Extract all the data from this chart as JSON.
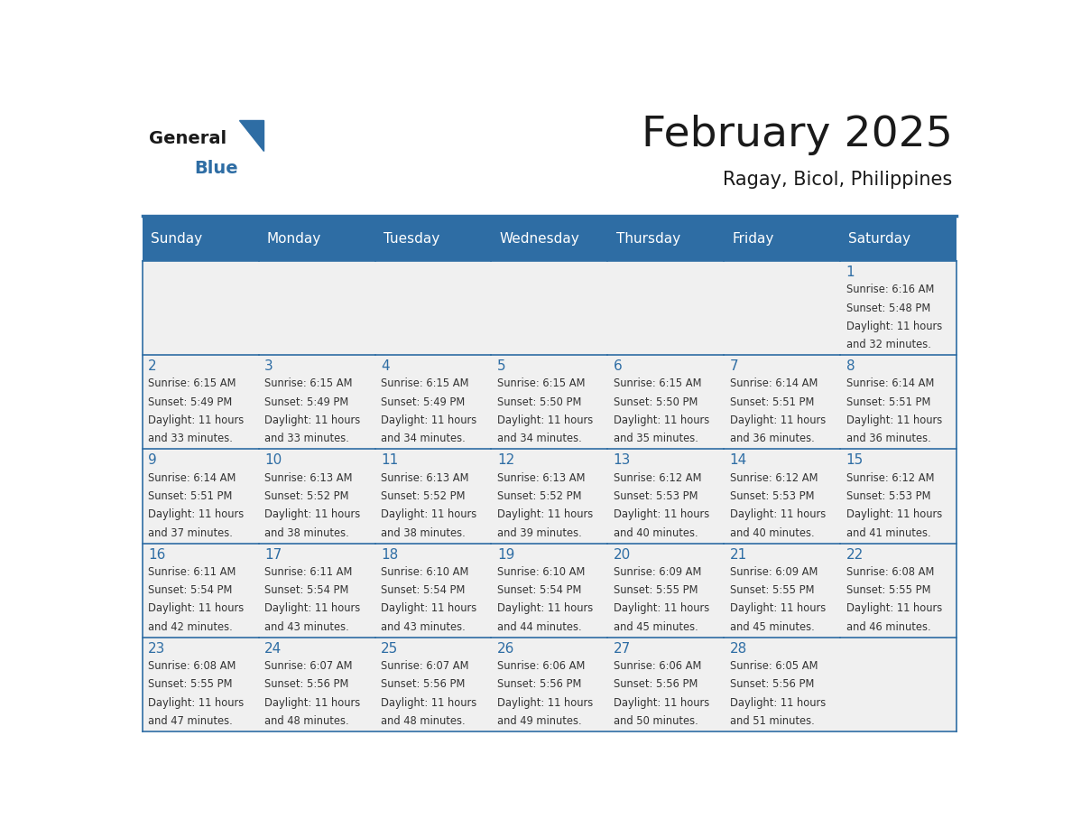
{
  "title": "February 2025",
  "subtitle": "Ragay, Bicol, Philippines",
  "header_bg": "#2E6DA4",
  "header_text_color": "#FFFFFF",
  "cell_bg": "#F0F0F0",
  "cell_border_color": "#2E6DA4",
  "day_number_color": "#2E6DA4",
  "text_color": "#333333",
  "days_of_week": [
    "Sunday",
    "Monday",
    "Tuesday",
    "Wednesday",
    "Thursday",
    "Friday",
    "Saturday"
  ],
  "calendar_data": [
    [
      null,
      null,
      null,
      null,
      null,
      null,
      1
    ],
    [
      2,
      3,
      4,
      5,
      6,
      7,
      8
    ],
    [
      9,
      10,
      11,
      12,
      13,
      14,
      15
    ],
    [
      16,
      17,
      18,
      19,
      20,
      21,
      22
    ],
    [
      23,
      24,
      25,
      26,
      27,
      28,
      null
    ]
  ],
  "sunrise_data": {
    "1": "6:16 AM",
    "2": "6:15 AM",
    "3": "6:15 AM",
    "4": "6:15 AM",
    "5": "6:15 AM",
    "6": "6:15 AM",
    "7": "6:14 AM",
    "8": "6:14 AM",
    "9": "6:14 AM",
    "10": "6:13 AM",
    "11": "6:13 AM",
    "12": "6:13 AM",
    "13": "6:12 AM",
    "14": "6:12 AM",
    "15": "6:12 AM",
    "16": "6:11 AM",
    "17": "6:11 AM",
    "18": "6:10 AM",
    "19": "6:10 AM",
    "20": "6:09 AM",
    "21": "6:09 AM",
    "22": "6:08 AM",
    "23": "6:08 AM",
    "24": "6:07 AM",
    "25": "6:07 AM",
    "26": "6:06 AM",
    "27": "6:06 AM",
    "28": "6:05 AM"
  },
  "sunset_data": {
    "1": "5:48 PM",
    "2": "5:49 PM",
    "3": "5:49 PM",
    "4": "5:49 PM",
    "5": "5:50 PM",
    "6": "5:50 PM",
    "7": "5:51 PM",
    "8": "5:51 PM",
    "9": "5:51 PM",
    "10": "5:52 PM",
    "11": "5:52 PM",
    "12": "5:52 PM",
    "13": "5:53 PM",
    "14": "5:53 PM",
    "15": "5:53 PM",
    "16": "5:54 PM",
    "17": "5:54 PM",
    "18": "5:54 PM",
    "19": "5:54 PM",
    "20": "5:55 PM",
    "21": "5:55 PM",
    "22": "5:55 PM",
    "23": "5:55 PM",
    "24": "5:56 PM",
    "25": "5:56 PM",
    "26": "5:56 PM",
    "27": "5:56 PM",
    "28": "5:56 PM"
  },
  "daylight_data": {
    "1": "11 hours and 32 minutes.",
    "2": "11 hours and 33 minutes.",
    "3": "11 hours and 33 minutes.",
    "4": "11 hours and 34 minutes.",
    "5": "11 hours and 34 minutes.",
    "6": "11 hours and 35 minutes.",
    "7": "11 hours and 36 minutes.",
    "8": "11 hours and 36 minutes.",
    "9": "11 hours and 37 minutes.",
    "10": "11 hours and 38 minutes.",
    "11": "11 hours and 38 minutes.",
    "12": "11 hours and 39 minutes.",
    "13": "11 hours and 40 minutes.",
    "14": "11 hours and 40 minutes.",
    "15": "11 hours and 41 minutes.",
    "16": "11 hours and 42 minutes.",
    "17": "11 hours and 43 minutes.",
    "18": "11 hours and 43 minutes.",
    "19": "11 hours and 44 minutes.",
    "20": "11 hours and 45 minutes.",
    "21": "11 hours and 45 minutes.",
    "22": "11 hours and 46 minutes.",
    "23": "11 hours and 47 minutes.",
    "24": "11 hours and 48 minutes.",
    "25": "11 hours and 48 minutes.",
    "26": "11 hours and 49 minutes.",
    "27": "11 hours and 50 minutes.",
    "28": "11 hours and 51 minutes."
  }
}
